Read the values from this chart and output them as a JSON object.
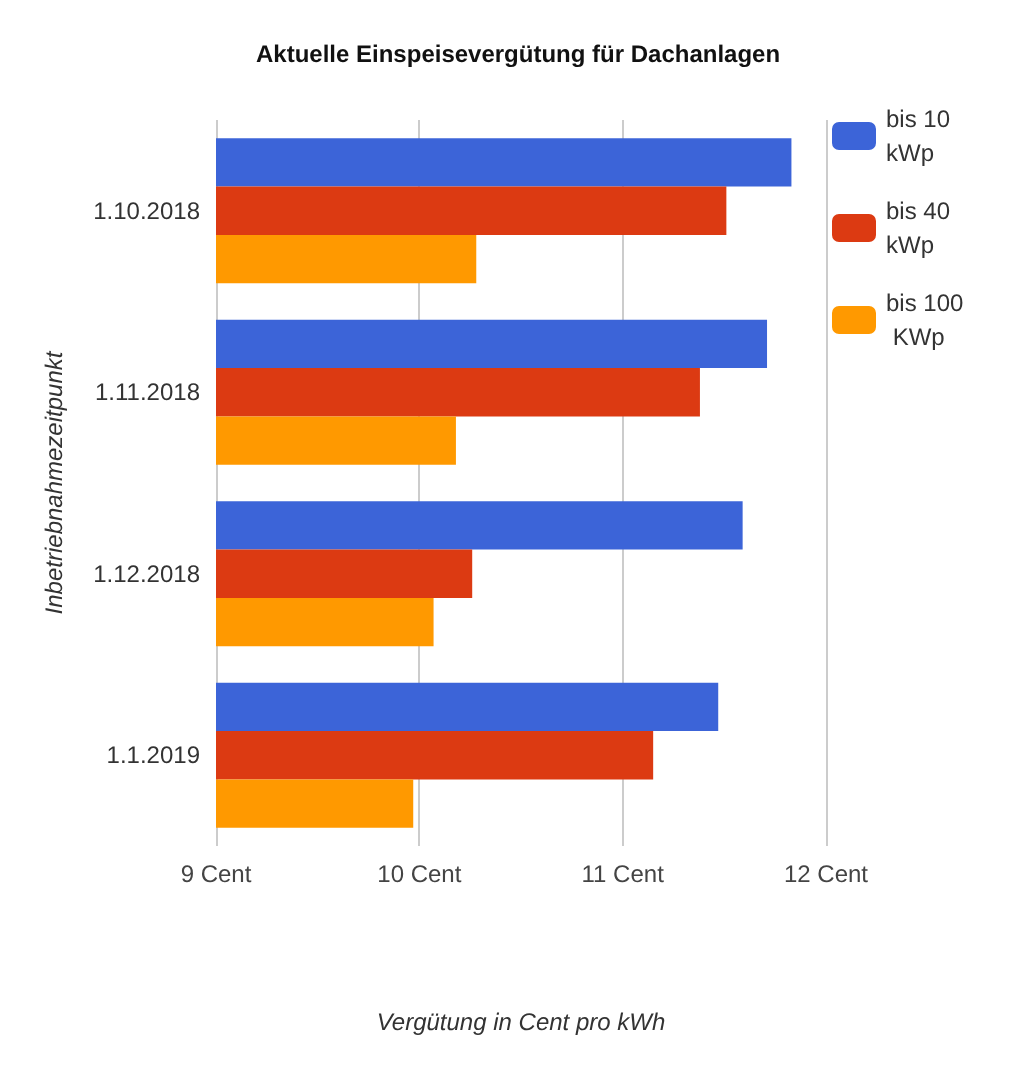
{
  "chart_data": {
    "type": "bar",
    "orientation": "horizontal",
    "title": "Aktuelle Einspeisevergütung für Dachanlagen",
    "xlabel": "Vergütung in Cent pro kWh",
    "ylabel": "Inbetriebnahmezeitpunkt",
    "categories": [
      "1.10.2018",
      "1.11.2018",
      "1.12.2018",
      "1.1.2019"
    ],
    "series": [
      {
        "name": "bis 10 kWp",
        "color": "#3c64d8",
        "values": [
          11.83,
          11.71,
          11.59,
          11.47
        ]
      },
      {
        "name": "bis 40 kWp",
        "color": "#dc3a12",
        "values": [
          11.51,
          11.38,
          10.26,
          11.15
        ]
      },
      {
        "name": "bis 100 KWp",
        "color": "#ff9900",
        "values": [
          10.28,
          10.18,
          10.07,
          9.97
        ]
      }
    ],
    "xlim": [
      9,
      12
    ],
    "xticks": [
      {
        "value": 9,
        "label": "9 Cent"
      },
      {
        "value": 10,
        "label": "10 Cent"
      },
      {
        "value": 11,
        "label": "11 Cent"
      },
      {
        "value": 12,
        "label": "12 Cent"
      }
    ],
    "grid": "x",
    "legend": "top right"
  }
}
